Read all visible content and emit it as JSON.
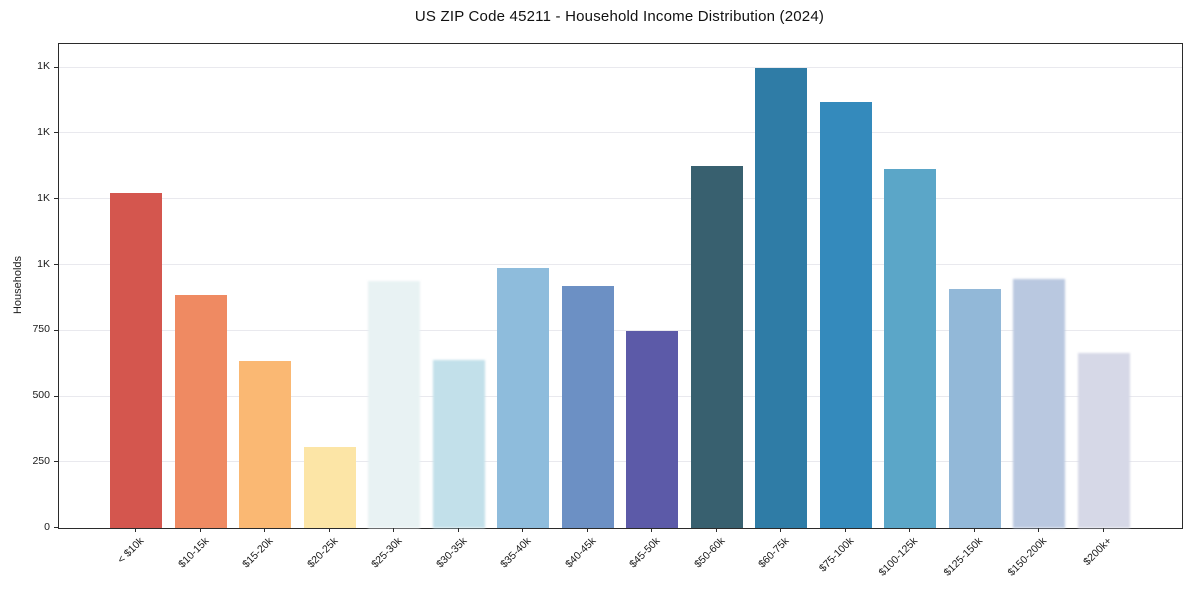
{
  "title": "US ZIP Code 45211 - Household Income Distribution (2024)",
  "chart_data": {
    "type": "bar",
    "title": "US ZIP Code 45211 - Household Income Distribution (2024)",
    "xlabel": "",
    "ylabel": "Households",
    "ylim": [
      0,
      1840
    ],
    "grid": "horizontal",
    "legend": "none",
    "categories": [
      "< $10k",
      "$10-15k",
      "$15-20k",
      "$20-25k",
      "$25-30k",
      "$30-35k",
      "$35-40k",
      "$40-45k",
      "$45-50k",
      "$50-60k",
      "$60-75k",
      "$75-100k",
      "$100-125k",
      "$125-150k",
      "$150-200k",
      "$200k+"
    ],
    "values": [
      1275,
      885,
      635,
      310,
      940,
      640,
      990,
      920,
      750,
      1375,
      1750,
      1620,
      1365,
      910,
      945,
      665
    ],
    "bar_colors": [
      "#d4564e",
      "#ef8a62",
      "#fab873",
      "#fce5a6",
      "#e8f2f3",
      "#c2e0ea",
      "#8ebcdc",
      "#6c90c4",
      "#5c5aa8",
      "#38606f",
      "#2f7ca6",
      "#348abc",
      "#5ba6c8",
      "#92b8d8",
      "#b9c8e0",
      "#d6d8e7"
    ],
    "soft_bars": [
      4,
      5,
      14,
      15
    ],
    "y_ticks": [
      {
        "value": 0,
        "label": "0"
      },
      {
        "value": 250,
        "label": "250"
      },
      {
        "value": 500,
        "label": "500"
      },
      {
        "value": 750,
        "label": "750"
      },
      {
        "value": 1000,
        "label": "1K"
      },
      {
        "value": 1250,
        "label": "1K"
      },
      {
        "value": 1500,
        "label": "1K"
      },
      {
        "value": 1750,
        "label": "1K"
      }
    ]
  }
}
